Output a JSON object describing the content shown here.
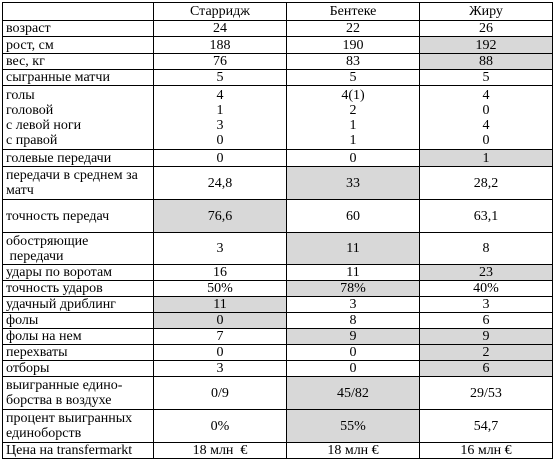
{
  "header": {
    "col1": "",
    "players": [
      "Старридж",
      "Бентеке",
      "Жиру"
    ]
  },
  "colors": {
    "highlight": "#d8d8d8",
    "border": "#000000"
  },
  "rows": [
    {
      "label": [
        "возраст"
      ],
      "values": [
        [
          "24"
        ],
        [
          "22"
        ],
        [
          "26"
        ]
      ],
      "highlight": [
        false,
        false,
        false
      ]
    },
    {
      "label": [
        "рост, см"
      ],
      "values": [
        [
          "188"
        ],
        [
          "190"
        ],
        [
          "192"
        ]
      ],
      "highlight": [
        false,
        false,
        true
      ]
    },
    {
      "label": [
        "вес, кг"
      ],
      "values": [
        [
          "76"
        ],
        [
          "83"
        ],
        [
          "88"
        ]
      ],
      "highlight": [
        false,
        false,
        true
      ]
    },
    {
      "label": [
        "сыгранные матчи"
      ],
      "values": [
        [
          "5"
        ],
        [
          "5"
        ],
        [
          "5"
        ]
      ],
      "highlight": [
        false,
        false,
        false
      ]
    },
    {
      "label": [
        "голы",
        "головой",
        "с левой ноги",
        "с правой"
      ],
      "values": [
        [
          "4",
          "1",
          "3",
          "0"
        ],
        [
          "4(1)",
          "2",
          "1",
          "1"
        ],
        [
          "4",
          "0",
          "4",
          "0"
        ]
      ],
      "highlight": [
        false,
        false,
        false
      ]
    },
    {
      "label": [
        "голевые передачи"
      ],
      "values": [
        [
          "0"
        ],
        [
          "0"
        ],
        [
          "1"
        ]
      ],
      "highlight": [
        false,
        false,
        true
      ]
    },
    {
      "label": [
        "передачи в среднем за",
        "матч"
      ],
      "values": [
        [
          "24,8"
        ],
        [
          "33"
        ],
        [
          "28,2"
        ]
      ],
      "highlight": [
        false,
        true,
        false
      ]
    },
    {
      "label": [
        "точность передач"
      ],
      "values": [
        [
          "76,6"
        ],
        [
          "60"
        ],
        [
          "63,1"
        ]
      ],
      "highlight": [
        true,
        false,
        false
      ]
    },
    {
      "label": [
        "обостряющие",
        " передачи"
      ],
      "values": [
        [
          "3"
        ],
        [
          "11"
        ],
        [
          "8"
        ]
      ],
      "highlight": [
        false,
        true,
        false
      ]
    },
    {
      "label": [
        "удары по воротам"
      ],
      "values": [
        [
          "16"
        ],
        [
          "11"
        ],
        [
          "23"
        ]
      ],
      "highlight": [
        false,
        false,
        true
      ]
    },
    {
      "label": [
        "точность ударов"
      ],
      "values": [
        [
          "50%"
        ],
        [
          "78%"
        ],
        [
          "40%"
        ]
      ],
      "highlight": [
        false,
        true,
        false
      ]
    },
    {
      "label": [
        "удачный дриблинг"
      ],
      "values": [
        [
          "11"
        ],
        [
          "3"
        ],
        [
          "3"
        ]
      ],
      "highlight": [
        true,
        false,
        false
      ]
    },
    {
      "label": [
        "фолы"
      ],
      "values": [
        [
          "0"
        ],
        [
          "8"
        ],
        [
          "6"
        ]
      ],
      "highlight": [
        true,
        false,
        false
      ]
    },
    {
      "label": [
        "фолы на нем"
      ],
      "values": [
        [
          "7"
        ],
        [
          "9"
        ],
        [
          "9"
        ]
      ],
      "highlight": [
        false,
        true,
        true
      ]
    },
    {
      "label": [
        "перехваты"
      ],
      "values": [
        [
          "0"
        ],
        [
          "0"
        ],
        [
          "2"
        ]
      ],
      "highlight": [
        false,
        false,
        true
      ]
    },
    {
      "label": [
        "отборы"
      ],
      "values": [
        [
          "3"
        ],
        [
          "0"
        ],
        [
          "6"
        ]
      ],
      "highlight": [
        false,
        false,
        true
      ]
    },
    {
      "label": [
        "выигранные едино-",
        "борства в воздухе"
      ],
      "values": [
        [
          "0/9"
        ],
        [
          "45/82"
        ],
        [
          "29/53"
        ]
      ],
      "highlight": [
        false,
        true,
        false
      ]
    },
    {
      "label": [
        "процент выигранных",
        "единоборств"
      ],
      "values": [
        [
          "0%"
        ],
        [
          "55%"
        ],
        [
          "54,7"
        ]
      ],
      "highlight": [
        false,
        true,
        false
      ]
    },
    {
      "label": [
        "Цена на transfermarkt"
      ],
      "values": [
        [
          "18 млн  €"
        ],
        [
          "18 млн €"
        ],
        [
          "16 млн €"
        ]
      ],
      "highlight": [
        false,
        false,
        false
      ]
    }
  ]
}
